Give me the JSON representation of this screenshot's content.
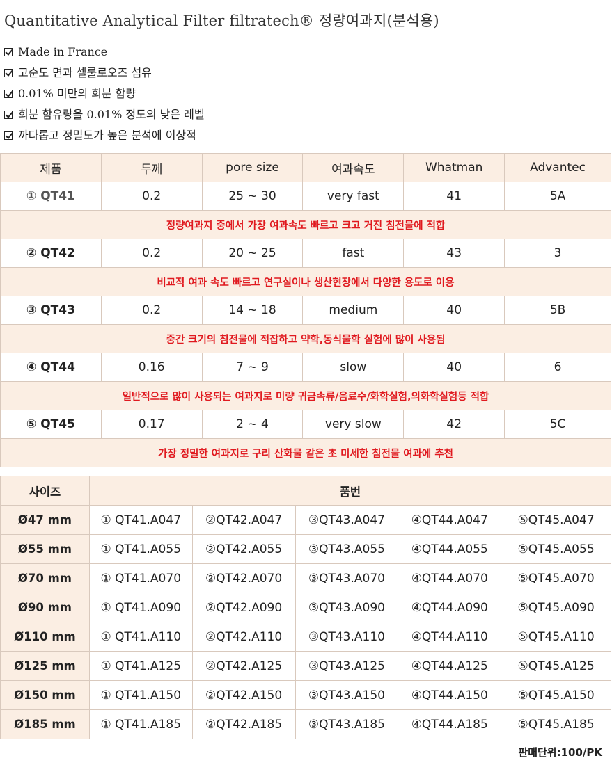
{
  "title": "Quantitative Analytical Filter filtratech® 정량여과지(분석용)",
  "features": [
    "Made in France",
    "고순도 면과 셀룰로오즈 섬유",
    "0.01% 미만의 회분 함량",
    "회분 함유량을 0.01% 정도의 낮은 레벨",
    "까다롭고 정밀도가 높은  분석에 이상적"
  ],
  "spec_table": {
    "headers": [
      "제품",
      "두께",
      "pore size",
      "여과속도",
      "Whatman",
      "Advantec"
    ],
    "rows": [
      {
        "product": "① QT41",
        "thickness": "0.2",
        "pore": "25 ~ 30",
        "speed": "very fast",
        "whatman": "41",
        "advantec": "5A",
        "note": "정량여과지 중에서 가장 여과속도 빠르고 크고 거진 침전물에 적합"
      },
      {
        "product": "② QT42",
        "thickness": "0.2",
        "pore": "20 ~ 25",
        "speed": "fast",
        "whatman": "43",
        "advantec": "3",
        "note": "비교적 여과 속도 빠르고 연구실이나 생산현장에서 다양한 용도로 이용"
      },
      {
        "product": "③ QT43",
        "thickness": "0.2",
        "pore": "14 ~ 18",
        "speed": "medium",
        "whatman": "40",
        "advantec": "5B",
        "note": "중간 크기의 침전물에 적잡하고 약학,동식물학 실험에 많이 사용됨"
      },
      {
        "product": "④ QT44",
        "thickness": "0.16",
        "pore": "7 ~ 9",
        "speed": "slow",
        "whatman": "40",
        "advantec": "6",
        "note": "일반적으로 많이 사용되는 여과지로 미량 귀금속류/음료수/화학실험,의화학실험등 적합"
      },
      {
        "product": "⑤ QT45",
        "thickness": "0.17",
        "pore": "2 ~ 4",
        "speed": "very slow",
        "whatman": "42",
        "advantec": "5C",
        "note": "가장 정밀한 여과지로 구리 산화물 같은 초 미세한 침전물 여과에 추천"
      }
    ]
  },
  "size_table": {
    "headers": [
      "사이즈",
      "품번"
    ],
    "rows": [
      {
        "size": "Ø47 mm",
        "codes": [
          "① QT41.A047",
          "②QT42.A047",
          "③QT43.A047",
          "④QT44.A047",
          "⑤QT45.A047"
        ]
      },
      {
        "size": "Ø55 mm",
        "codes": [
          "① QT41.A055",
          "②QT42.A055",
          "③QT43.A055",
          "④QT44.A055",
          "⑤QT45.A055"
        ]
      },
      {
        "size": "Ø70 mm",
        "codes": [
          "① QT41.A070",
          "②QT42.A070",
          "③QT43.A070",
          "④QT44.A070",
          "⑤QT45.A070"
        ]
      },
      {
        "size": "Ø90 mm",
        "codes": [
          "① QT41.A090",
          "②QT42.A090",
          "③QT43.A090",
          "④QT44.A090",
          "⑤QT45.A090"
        ]
      },
      {
        "size": "Ø110 mm",
        "codes": [
          "① QT41.A110",
          "②QT42.A110",
          "③QT43.A110",
          "④QT44.A110",
          "⑤QT45.A110"
        ]
      },
      {
        "size": "Ø125 mm",
        "codes": [
          "① QT41.A125",
          "②QT42.A125",
          "③QT43.A125",
          "④QT44.A125",
          "⑤QT45.A125"
        ]
      },
      {
        "size": "Ø150 mm",
        "codes": [
          "① QT41.A150",
          "②QT42.A150",
          "③QT43.A150",
          "④QT44.A150",
          "⑤QT45.A150"
        ]
      },
      {
        "size": "Ø185 mm",
        "codes": [
          "① QT41.A185",
          "②QT42.A185",
          "③QT43.A185",
          "④QT44.A185",
          "⑤QT45.A185"
        ]
      }
    ]
  },
  "sales_unit": "판매단위:100/PK",
  "colors": {
    "accent_bg": "#fbeee3",
    "note_red": "#e0191f",
    "border": "#d9c9bd"
  },
  "icons": {
    "feature_bullet": "checkbox-checked-icon"
  }
}
